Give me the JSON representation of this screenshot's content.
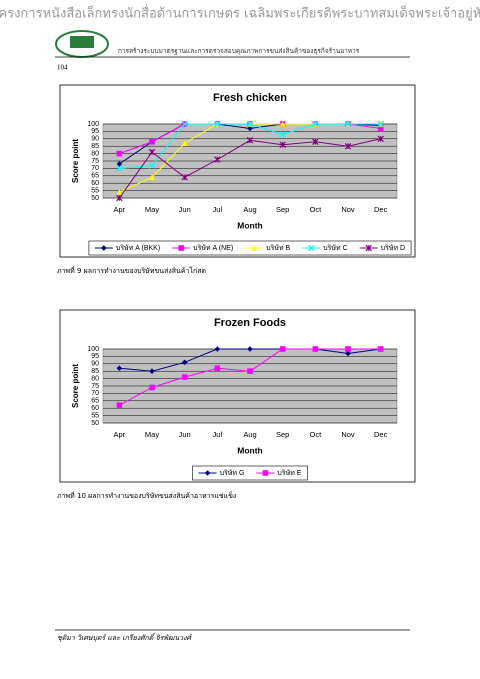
{
  "header": {
    "title": "โครงการหนังสือเล็กทรงนักสื่อด้านการเกษตร เฉลิมพระเกียรติพระบาทสมเด็จพระเจ้าอยู่หัว",
    "subtitle": "การสร้างระบบมาตรฐานและการตรวจสอบคุณภาพการขนส่งสินค้าของธุรกิจร้านอาหาร",
    "page": "104"
  },
  "chart_data": [
    {
      "type": "line",
      "title": "Fresh chicken",
      "x_label": "Month",
      "y_label": "Score point",
      "categories": [
        "Apr",
        "May",
        "Jun",
        "Jul",
        "Aug",
        "Sep",
        "Oct",
        "Nov",
        "Dec"
      ],
      "ylim": [
        50,
        100
      ],
      "yticks": [
        50,
        55,
        60,
        65,
        70,
        75,
        80,
        85,
        90,
        95,
        100
      ],
      "grid": true,
      "series": [
        {
          "name": "บริษัท A (BKK)",
          "color": "#000080",
          "marker": "diamond",
          "values": [
            73,
            88,
            100,
            100,
            97,
            100,
            100,
            100,
            99
          ]
        },
        {
          "name": "บริษัท A (NE)",
          "color": "#ff00ff",
          "marker": "square",
          "values": [
            80,
            88,
            100,
            100,
            100,
            100,
            100,
            100,
            97
          ]
        },
        {
          "name": "บริษัท B",
          "color": "#ffff00",
          "marker": "triangle",
          "values": [
            54,
            64,
            87,
            100,
            100,
            100,
            100,
            100,
            100
          ]
        },
        {
          "name": "บริษัท C",
          "color": "#00ffff",
          "marker": "x",
          "values": [
            70,
            72,
            100,
            100,
            100,
            93,
            100,
            100,
            100
          ]
        },
        {
          "name": "บริษัท D",
          "color": "#800080",
          "marker": "star",
          "values": [
            50,
            81,
            64,
            76,
            89,
            86,
            88,
            85,
            90
          ]
        }
      ],
      "caption": "ภาพที่ 9   ผลการทำงานของบริษัทขนส่งสินค้าไก่สด"
    },
    {
      "type": "line",
      "title": "Frozen Foods",
      "x_label": "Month",
      "y_label": "Score point",
      "categories": [
        "Apr",
        "May",
        "Jun",
        "Jul",
        "Aug",
        "Sep",
        "Oct",
        "Nov",
        "Dec"
      ],
      "ylim": [
        50,
        100
      ],
      "yticks": [
        50,
        55,
        60,
        65,
        70,
        75,
        80,
        85,
        90,
        95,
        100
      ],
      "grid": true,
      "series": [
        {
          "name": "บริษัท G",
          "color": "#000080",
          "marker": "diamond",
          "values": [
            87,
            85,
            91,
            100,
            100,
            100,
            100,
            97,
            100
          ]
        },
        {
          "name": "บริษัท E",
          "color": "#ff00ff",
          "marker": "square",
          "values": [
            62,
            74,
            81,
            87,
            85,
            100,
            100,
            100,
            100
          ]
        }
      ],
      "caption": "ภาพที่ 10 ผลการทำงานของบริษัทขนส่งสินค้าอาหารแช่แข็ง"
    }
  ],
  "footer": "ชุติมา วิเศษบุตร์ และ เกรียงศักดิ์ จิรพัฒนวงศ์"
}
